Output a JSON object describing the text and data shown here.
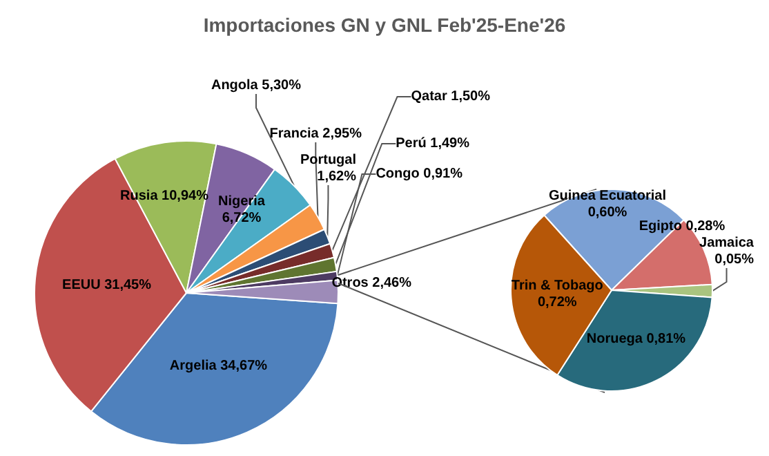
{
  "chart_data": [
    {
      "type": "pie",
      "title": "Importaciones GN y GNL Feb'25-Ene'26",
      "categories": [
        "Argelia",
        "EEUU",
        "Rusia",
        "Nigeria",
        "Angola",
        "Francia",
        "Portugal",
        "Qatar",
        "Perú",
        "Congo",
        "Otros"
      ],
      "values": [
        34.67,
        31.45,
        10.94,
        6.72,
        5.3,
        2.95,
        1.62,
        1.5,
        1.49,
        0.91,
        2.46
      ],
      "value_labels": [
        "34,67%",
        "31,45%",
        "10,94%",
        "6,72%",
        "5,30%",
        "2,95%",
        "1,62%",
        "1,50%",
        "1,49%",
        "0,91%",
        "2,46%"
      ],
      "colors": [
        "#4f81bd",
        "#c0504d",
        "#9bbb59",
        "#8064a2",
        "#4bacc6",
        "#f79646",
        "#2c4d75",
        "#772c2a",
        "#5f7530",
        "#4d3b62",
        "#9d8bb8"
      ]
    },
    {
      "type": "pie",
      "categories": [
        "Guinea Ecuatorial",
        "Egipto",
        "Jamaica",
        "Noruega",
        "Trin & Tobago"
      ],
      "values": [
        0.6,
        0.28,
        0.05,
        0.81,
        0.72
      ],
      "value_labels": [
        "0,60%",
        "0,28%",
        "0,05%",
        "0,81%",
        "0,72%"
      ],
      "colors": [
        "#7ba0d4",
        "#d46e6b",
        "#a9c47f",
        "#276a7c",
        "#b65708"
      ]
    }
  ]
}
